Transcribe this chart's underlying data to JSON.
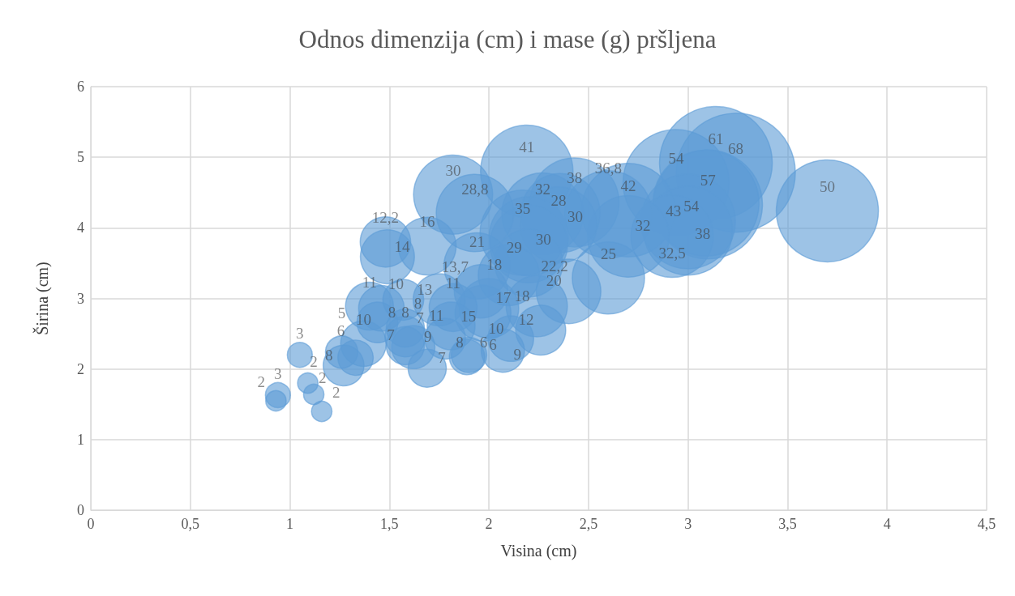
{
  "chart_data": {
    "type": "bubble",
    "title": "Odnos dimenzija (cm) i mase (g) pršljena",
    "xlabel": "Visina (cm)",
    "ylabel": "Širina (cm)",
    "xlim": [
      0,
      4.5
    ],
    "ylim": [
      0,
      6
    ],
    "xticks": [
      0,
      {
        "value": 0.5,
        "label": "0,5"
      },
      1,
      {
        "value": 1.5,
        "label": "1,5"
      },
      2,
      {
        "value": 2.5,
        "label": "2,5"
      },
      3,
      {
        "value": 3.5,
        "label": "3,5"
      },
      4,
      {
        "value": 4.5,
        "label": "4,5"
      }
    ],
    "yticks": [
      0,
      1,
      2,
      3,
      4,
      5,
      6
    ],
    "grid": true,
    "series": [
      {
        "color": "#5b9bd5",
        "x": [
          3.24,
          3.14,
          3.1,
          2.94,
          3.09,
          3.7,
          3.0,
          2.7,
          2.19,
          2.43,
          3.0,
          2.6,
          2.17,
          2.92,
          2.27,
          2.7,
          1.82,
          2.36,
          2.2,
          2.2,
          1.93,
          2.35,
          2.6,
          2.2,
          1.94,
          2.4,
          2.1,
          2.24,
          2.0,
          1.69,
          1.97,
          1.49,
          1.96,
          1.75,
          1.48,
          2.26,
          1.4,
          1.82,
          1.81,
          1.37,
          1.46,
          2.11,
          1.62,
          2.07,
          1.27,
          1.44,
          1.57,
          1.58,
          1.78,
          1.58,
          1.58,
          1.69,
          1.33,
          1.9,
          1.89,
          1.26,
          0.94,
          1.05,
          0.93,
          1.09,
          1.12,
          1.16
        ],
        "values": [
          4.78,
          4.92,
          4.33,
          4.64,
          4.35,
          4.24,
          4.09,
          4.25,
          4.8,
          4.36,
          3.96,
          4.19,
          3.93,
          3.88,
          4.2,
          3.88,
          4.47,
          4.21,
          3.88,
          3.77,
          4.21,
          4.04,
          3.29,
          3.5,
          3.46,
          3.1,
          3.33,
          2.89,
          2.86,
          3.74,
          2.79,
          3.59,
          3.1,
          2.98,
          3.8,
          2.55,
          2.89,
          2.87,
          2.61,
          2.36,
          2.86,
          2.43,
          2.31,
          2.26,
          2.05,
          2.66,
          2.98,
          2.46,
          2.43,
          2.58,
          2.33,
          2.01,
          2.16,
          2.2,
          2.17,
          2.24,
          1.63,
          2.2,
          1.55,
          1.8,
          1.64,
          1.4
        ],
        "sizes": [
          68,
          61,
          57,
          54,
          54,
          50,
          43,
          42,
          41,
          38,
          38,
          36.8,
          35,
          32.5,
          32,
          32,
          30,
          30,
          30,
          29,
          28.8,
          28,
          25,
          22.2,
          21,
          20,
          18,
          18,
          17,
          16,
          15,
          14,
          13.7,
          13,
          12.2,
          12,
          11,
          11,
          11,
          10,
          10,
          10,
          9,
          9,
          8,
          8,
          8,
          8,
          8,
          7,
          7,
          7,
          6,
          6,
          6,
          5,
          3,
          3,
          2,
          2,
          2,
          2
        ],
        "value_labels": [
          "68",
          "61",
          "57",
          "54",
          "54",
          "50",
          "43",
          "42",
          "41",
          "38",
          "38",
          "36,8",
          "35",
          "32,5",
          "32",
          "32",
          "30",
          "30",
          "30",
          "29",
          "28,8",
          "28",
          "25",
          "22,2",
          "21",
          "20",
          "18",
          "18",
          "17",
          "16",
          "15",
          "14",
          "13,7",
          "13",
          "12,2",
          "12",
          "11",
          "11",
          "11",
          "10",
          "10",
          "10",
          "9",
          "9",
          "8",
          "8",
          "8",
          "8",
          "8",
          "7",
          "7",
          "7",
          "6",
          "6",
          "6",
          "5",
          "3",
          "3",
          "2",
          "2",
          "2",
          "2"
        ]
      }
    ]
  }
}
